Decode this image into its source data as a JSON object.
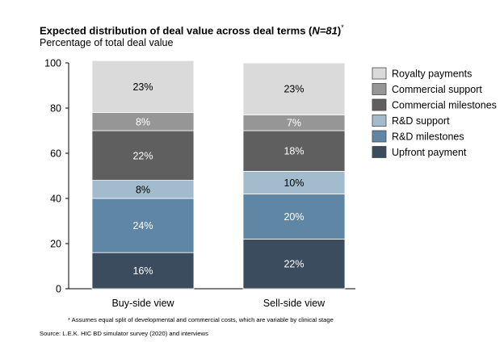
{
  "chart_data": {
    "type": "bar",
    "stacked": true,
    "title_main": "Expected distribution of deal value across deal terms (",
    "title_n": "N=81",
    "title_close": ")",
    "title_marker": "*",
    "subtitle": "Percentage of total deal value",
    "categories": [
      "Buy-side view",
      "Sell-side view"
    ],
    "ylim": [
      0,
      100
    ],
    "yticks": [
      "0",
      "20",
      "40",
      "60",
      "80",
      "100"
    ],
    "series": [
      {
        "name": "Upfront payment",
        "color": "#3a4c5e",
        "label_color": "#ffffff",
        "values": [
          16,
          22
        ],
        "labels": [
          "16%",
          "22%"
        ]
      },
      {
        "name": "R&D milestones",
        "color": "#5f87a5",
        "label_color": "#ffffff",
        "values": [
          24,
          20
        ],
        "labels": [
          "24%",
          "20%"
        ]
      },
      {
        "name": "R&D support",
        "color": "#a3bccd",
        "label_color": "#000000",
        "values": [
          8,
          10
        ],
        "labels": [
          "8%",
          "10%"
        ]
      },
      {
        "name": "Commercial milestones",
        "color": "#5f5f5f",
        "label_color": "#ffffff",
        "values": [
          22,
          18
        ],
        "labels": [
          "22%",
          "18%"
        ]
      },
      {
        "name": "Commercial support",
        "color": "#969696",
        "label_color": "#ffffff",
        "values": [
          8,
          7
        ],
        "labels": [
          "8%",
          "7%"
        ]
      },
      {
        "name": "Royalty payments",
        "color": "#dadada",
        "label_color": "#000000",
        "values": [
          23,
          23
        ],
        "labels": [
          "23%",
          "23%"
        ]
      }
    ],
    "legend_placement": "right",
    "grid": false
  },
  "footnote": "* Assumes equal split of developmental and commercial costs, which are variable by clinical stage",
  "source": "Source:  L.E.K. HIC BD simulator survey (2020) and interviews"
}
